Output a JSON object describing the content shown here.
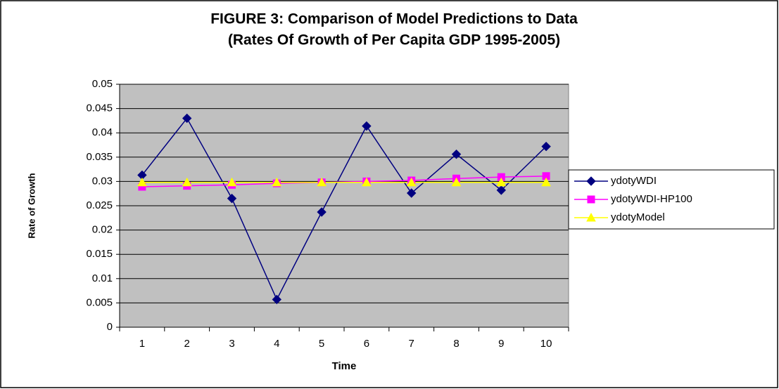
{
  "chart_data": {
    "type": "line",
    "title": "FIGURE 3: Comparison of Model Predictions to Data",
    "subtitle": "(Rates Of Growth of Per Capita GDP 1995-2005)",
    "x_label": "Time",
    "y_label": "Rate of Growth",
    "categories": [
      "1",
      "2",
      "3",
      "4",
      "5",
      "6",
      "7",
      "8",
      "9",
      "10"
    ],
    "series": [
      {
        "name": "ydotyWDI",
        "color": "#000080",
        "marker": "diamond",
        "values": [
          0.0313,
          0.043,
          0.0265,
          0.0057,
          0.0237,
          0.0414,
          0.0276,
          0.0356,
          0.0282,
          0.0372
        ]
      },
      {
        "name": "ydotyWDI-HP100",
        "color": "#ff00ff",
        "marker": "square",
        "values": [
          0.0289,
          0.0291,
          0.0293,
          0.0296,
          0.0298,
          0.03,
          0.0302,
          0.0306,
          0.0309,
          0.0311
        ]
      },
      {
        "name": "ydotyModel",
        "color": "#ffff00",
        "marker": "triangle",
        "values": [
          0.0298,
          0.0298,
          0.0298,
          0.0298,
          0.0298,
          0.0298,
          0.0298,
          0.0298,
          0.0298,
          0.0298
        ]
      }
    ],
    "ylim": [
      0,
      0.05
    ],
    "yticks": [
      0,
      0.005,
      0.01,
      0.015,
      0.02,
      0.025,
      0.03,
      0.035,
      0.04,
      0.045,
      0.05
    ],
    "grid": true,
    "legend": "right",
    "plot_background": "#c0c0c0"
  }
}
